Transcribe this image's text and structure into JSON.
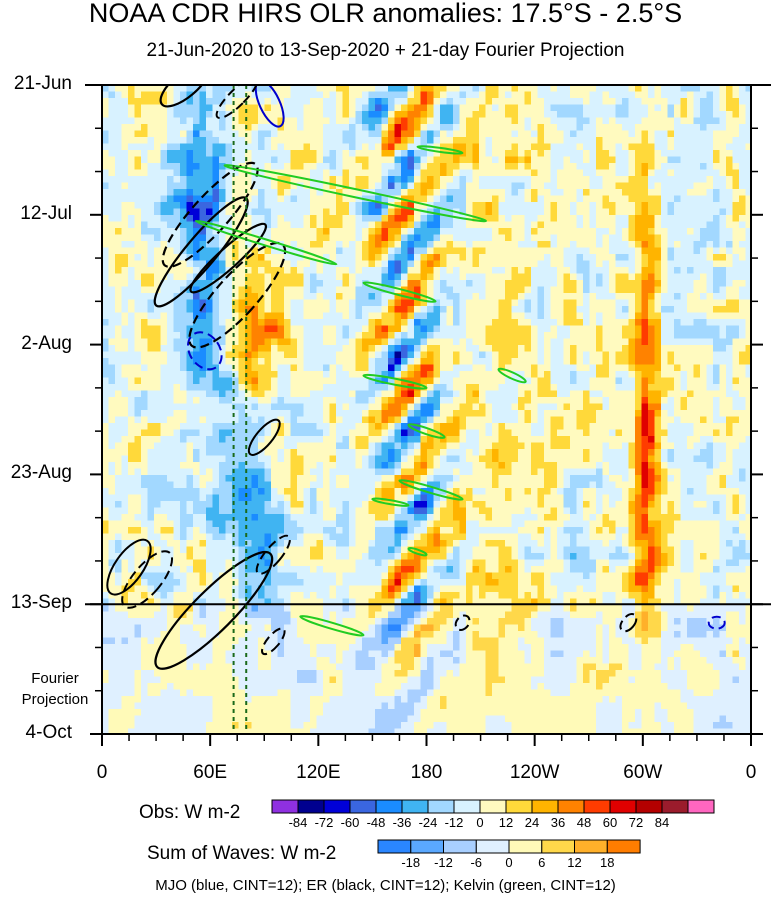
{
  "title": "NOAA CDR HIRS OLR anomalies: 17.5°S - 2.5°S",
  "subtitle": "21-Jun-2020 to 13-Sep-2020 + 21-day Fourier Projection",
  "chart_data": {
    "type": "heatmap",
    "x_tick_labels": [
      "0",
      "60E",
      "120E",
      "180",
      "120W",
      "60W",
      "0"
    ],
    "x_tick_values_deg_east": [
      0,
      60,
      120,
      180,
      240,
      300,
      360
    ],
    "xlim_deg_east": [
      0,
      360
    ],
    "y_tick_labels": [
      "21-Jun",
      "12-Jul",
      "2-Aug",
      "23-Aug",
      "13-Sep",
      "4-Oct"
    ],
    "y_tick_dates": [
      "2020-06-21",
      "2020-07-12",
      "2020-08-02",
      "2020-08-23",
      "2020-09-13",
      "2020-10-04"
    ],
    "ylim_dates": [
      "2020-06-21",
      "2020-10-04"
    ],
    "y_direction": "time increases downward",
    "observation_end_date": "2020-09-13",
    "projection_label": "Fourier Projection",
    "reference_longitudes_deg_east": [
      73,
      80
    ],
    "colorbars": [
      {
        "title": "Obs: W m-2",
        "tick_labels": [
          "-84",
          "-72",
          "-60",
          "-48",
          "-36",
          "-24",
          "-12",
          "0",
          "12",
          "24",
          "36",
          "48",
          "60",
          "72",
          "84"
        ],
        "colors": [
          "#8f30e0",
          "#00008f",
          "#0000d8",
          "#3a66e0",
          "#1a8cff",
          "#40b4f2",
          "#a2d8ff",
          "#d8f2ff",
          "#fffabf",
          "#ffd93a",
          "#ffb400",
          "#ff8200",
          "#ff3c00",
          "#e00000",
          "#b40000",
          "#9b1c2c",
          "#ff66c0"
        ]
      },
      {
        "title": "Sum of Waves: W m-2",
        "tick_labels": [
          "-18",
          "-12",
          "-6",
          "0",
          "6",
          "12",
          "18"
        ],
        "colors": [
          "#2a86ff",
          "#5aa8ff",
          "#a8cfff",
          "#dff0ff",
          "#fffab8",
          "#ffd84a",
          "#ffb02a",
          "#ff7d00"
        ]
      }
    ],
    "contour_series": [
      {
        "name": "MJO",
        "color": "#0000cc",
        "cint": 12
      },
      {
        "name": "ER",
        "color": "#000000",
        "cint": 12
      },
      {
        "name": "Kelvin",
        "color": "#22cc22",
        "cint": 12
      }
    ],
    "footer": "MJO (blue, CINT=12); ER (black, CINT=12); Kelvin (green, CINT=12)"
  }
}
